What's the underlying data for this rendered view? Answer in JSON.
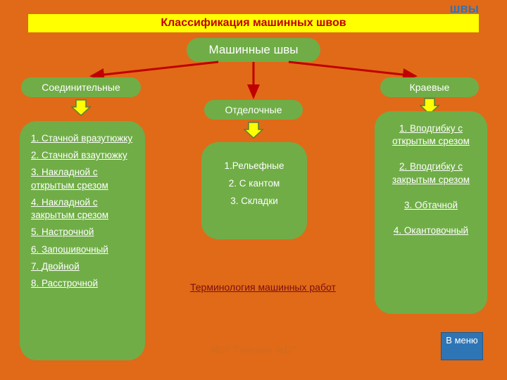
{
  "colors": {
    "slide_bg": "#e06a18",
    "title_bg": "#ffff00",
    "title_text": "#c00000",
    "bg_text_color": "#2e75b6",
    "pill_bg": "#70ad47",
    "panel_bg": "#70ad47",
    "arrow_fill": "#ffff00",
    "arrow_stroke": "#548235",
    "red_arrow": "#c00000",
    "link_color": "#7b1010",
    "menu_bg": "#2e75b6",
    "footer_color": "#bf6a2a"
  },
  "typography": {
    "title_fontsize": 16,
    "pill_fontsize": 15,
    "list_fontsize": 13.5
  },
  "bg_text": "швы",
  "title": "Классификация  машинных  швов",
  "root": {
    "label": "Машинные швы"
  },
  "branches": {
    "left": {
      "label": "Соединительные"
    },
    "mid": {
      "label": "Отделочные"
    },
    "right": {
      "label": "Краевые"
    }
  },
  "panels": {
    "left_items": [
      "Стачной вразутюжку",
      "Стачной взаутюжку",
      "Накладной с открытым срезом",
      "Накладной с закрытым срезом",
      "Настрочной",
      "Запошивочный",
      "Двойной",
      "Расстрочной"
    ],
    "mid_items": [
      "1.Рельефные",
      "2. С кантом",
      "3. Складки"
    ],
    "right_items": [
      "Вподгибку с открытым срезом",
      "Вподгибку с закрытым срезом",
      "Обтачной",
      "Окантовочный"
    ]
  },
  "term_link": "Терминология машинных работ",
  "footer": "МОУ \"Гимназия №12\"",
  "menu_label": "В меню"
}
